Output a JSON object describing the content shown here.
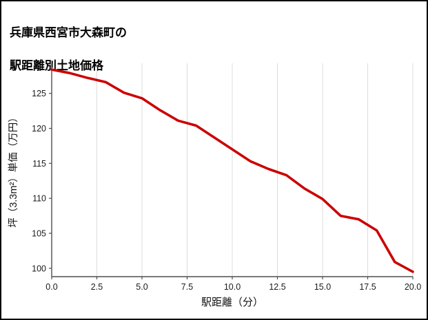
{
  "title": {
    "line1": "兵庫県西宮市大森町の",
    "line2": "駅距離別土地価格"
  },
  "chart_data": {
    "type": "line",
    "title": "兵庫県西宮市大森町の駅距離別土地価格",
    "xlabel": "駅距離（分）",
    "ylabel": "坪（3.3m²）単価（万円）",
    "x": [
      0,
      1,
      2,
      3,
      4,
      5,
      6,
      7,
      8,
      9,
      10,
      11,
      12,
      13,
      14,
      15,
      16,
      17,
      18,
      19,
      20
    ],
    "values": [
      128.4,
      127.9,
      127.2,
      126.6,
      125.1,
      124.3,
      122.6,
      121.1,
      120.4,
      118.7,
      117.0,
      115.3,
      114.2,
      113.3,
      111.4,
      109.9,
      107.5,
      107.0,
      105.4,
      100.9,
      99.5
    ],
    "xlim": [
      0,
      20
    ],
    "ylim": [
      98.8,
      129.3
    ],
    "xticks": {
      "values": [
        0,
        2.5,
        5,
        7.5,
        10,
        12.5,
        15,
        17.5,
        20
      ],
      "labels": [
        "0.0",
        "2.5",
        "5.0",
        "7.5",
        "10.0",
        "12.5",
        "15.0",
        "17.5",
        "20.0"
      ]
    },
    "yticks": [
      100,
      105,
      110,
      115,
      120,
      125
    ],
    "grid": "vertical",
    "legend": "none",
    "line_color": "#cc0000",
    "line_width": 3.6,
    "axis_color": "#4d4d4d",
    "grid_color": "#dcdcdc",
    "tick_text_color": "#1a1a1a"
  }
}
